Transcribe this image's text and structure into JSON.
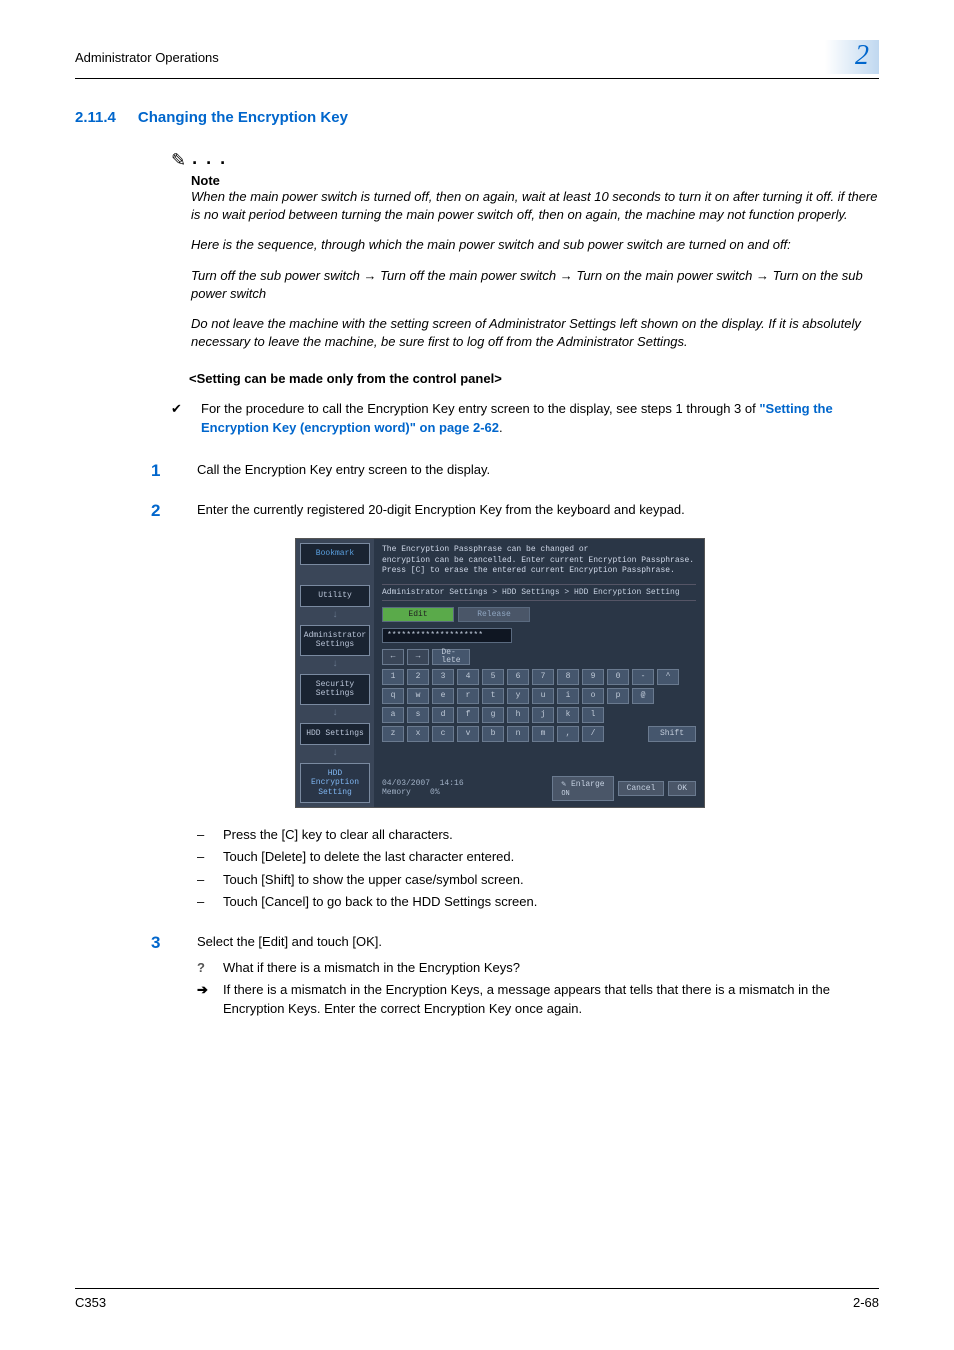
{
  "header": {
    "title": "Administrator Operations",
    "chapter": "2"
  },
  "section": {
    "number": "2.11.4",
    "title": "Changing the Encryption Key"
  },
  "note": {
    "label": "Note",
    "p1": "When the main power switch is turned off, then on again, wait at least 10 seconds to turn it on after turning it off. if there is no wait period between turning the main power switch off, then on again, the machine may not function properly.",
    "p2": "Here is the sequence, through which the main power switch and sub power switch are turned on and off:",
    "seq1": "Turn off the sub power switch ",
    "seq2": " Turn off the main power switch ",
    "seq3": " Turn on the main power switch ",
    "seq4": "Turn on the sub power switch",
    "p3": "Do not leave the machine with the setting screen of Administrator Settings left shown on the display. If it is absolutely necessary to leave the machine, be sure first to log off from the Administrator Settings."
  },
  "settingLine": "<Setting can be made only from the control panel>",
  "checkItem": {
    "text": "For the procedure to call the Encryption Key entry screen to the display, see steps 1 through 3 of ",
    "link": "\"Setting the Encryption Key (encryption word)\" on page 2-62",
    "suffix": "."
  },
  "steps": {
    "s1": "Call the Encryption Key entry screen to the display.",
    "s2": "Enter the currently registered 20-digit Encryption Key from the keyboard and keypad.",
    "s3": "Select the [Edit] and touch [OK]."
  },
  "bullets": {
    "b1": "Press the [C] key to clear all characters.",
    "b2": "Touch [Delete] to delete the last character entered.",
    "b3": "Touch [Shift] to show the upper case/symbol screen.",
    "b4": "Touch [Cancel] to go back to the HDD Settings screen."
  },
  "qa": {
    "q": "What if there is a mismatch in the Encryption Keys?",
    "a": "If there is a mismatch in the Encryption Keys, a message appears that tells that there is a mismatch in the Encryption Keys. Enter the correct Encryption Key once again."
  },
  "lcd": {
    "inst1": "The Encryption Passphrase can be changed or",
    "inst2": "encryption can be cancelled. Enter current Encryption Passphrase.",
    "inst3": "Press [C] to erase the entered current Encryption Passphrase.",
    "breadcrumb": "Administrator Settings > HDD Settings > HDD Encryption Setting",
    "tabs": {
      "edit": "Edit",
      "release": "Release"
    },
    "inputValue": "********************",
    "sidebar": {
      "bookmark": "Bookmark",
      "utility": "Utility",
      "admin": "Administrator\nSettings",
      "security": "Security\nSettings",
      "hdd": "HDD Settings",
      "hddEnc": "HDD Encryption\nSetting"
    },
    "delete": "De-\nlete",
    "shift": "Shift",
    "footer": {
      "date": "04/03/2007",
      "time": "14:16",
      "mem": "Memory",
      "pct": "0%",
      "enlarge": "Enlarge",
      "on": "ON",
      "cancel": "Cancel",
      "ok": "OK"
    },
    "rows": {
      "r1": [
        "1",
        "2",
        "3",
        "4",
        "5",
        "6",
        "7",
        "8",
        "9",
        "0",
        "-",
        "^"
      ],
      "r2": [
        "q",
        "w",
        "e",
        "r",
        "t",
        "y",
        "u",
        "i",
        "o",
        "p",
        "@"
      ],
      "r3": [
        "a",
        "s",
        "d",
        "f",
        "g",
        "h",
        "j",
        "k",
        "l"
      ],
      "r4": [
        "z",
        "x",
        "c",
        "v",
        "b",
        "n",
        "m",
        ",",
        "/"
      ]
    }
  },
  "footer": {
    "product": "C353",
    "page": "2-68"
  }
}
